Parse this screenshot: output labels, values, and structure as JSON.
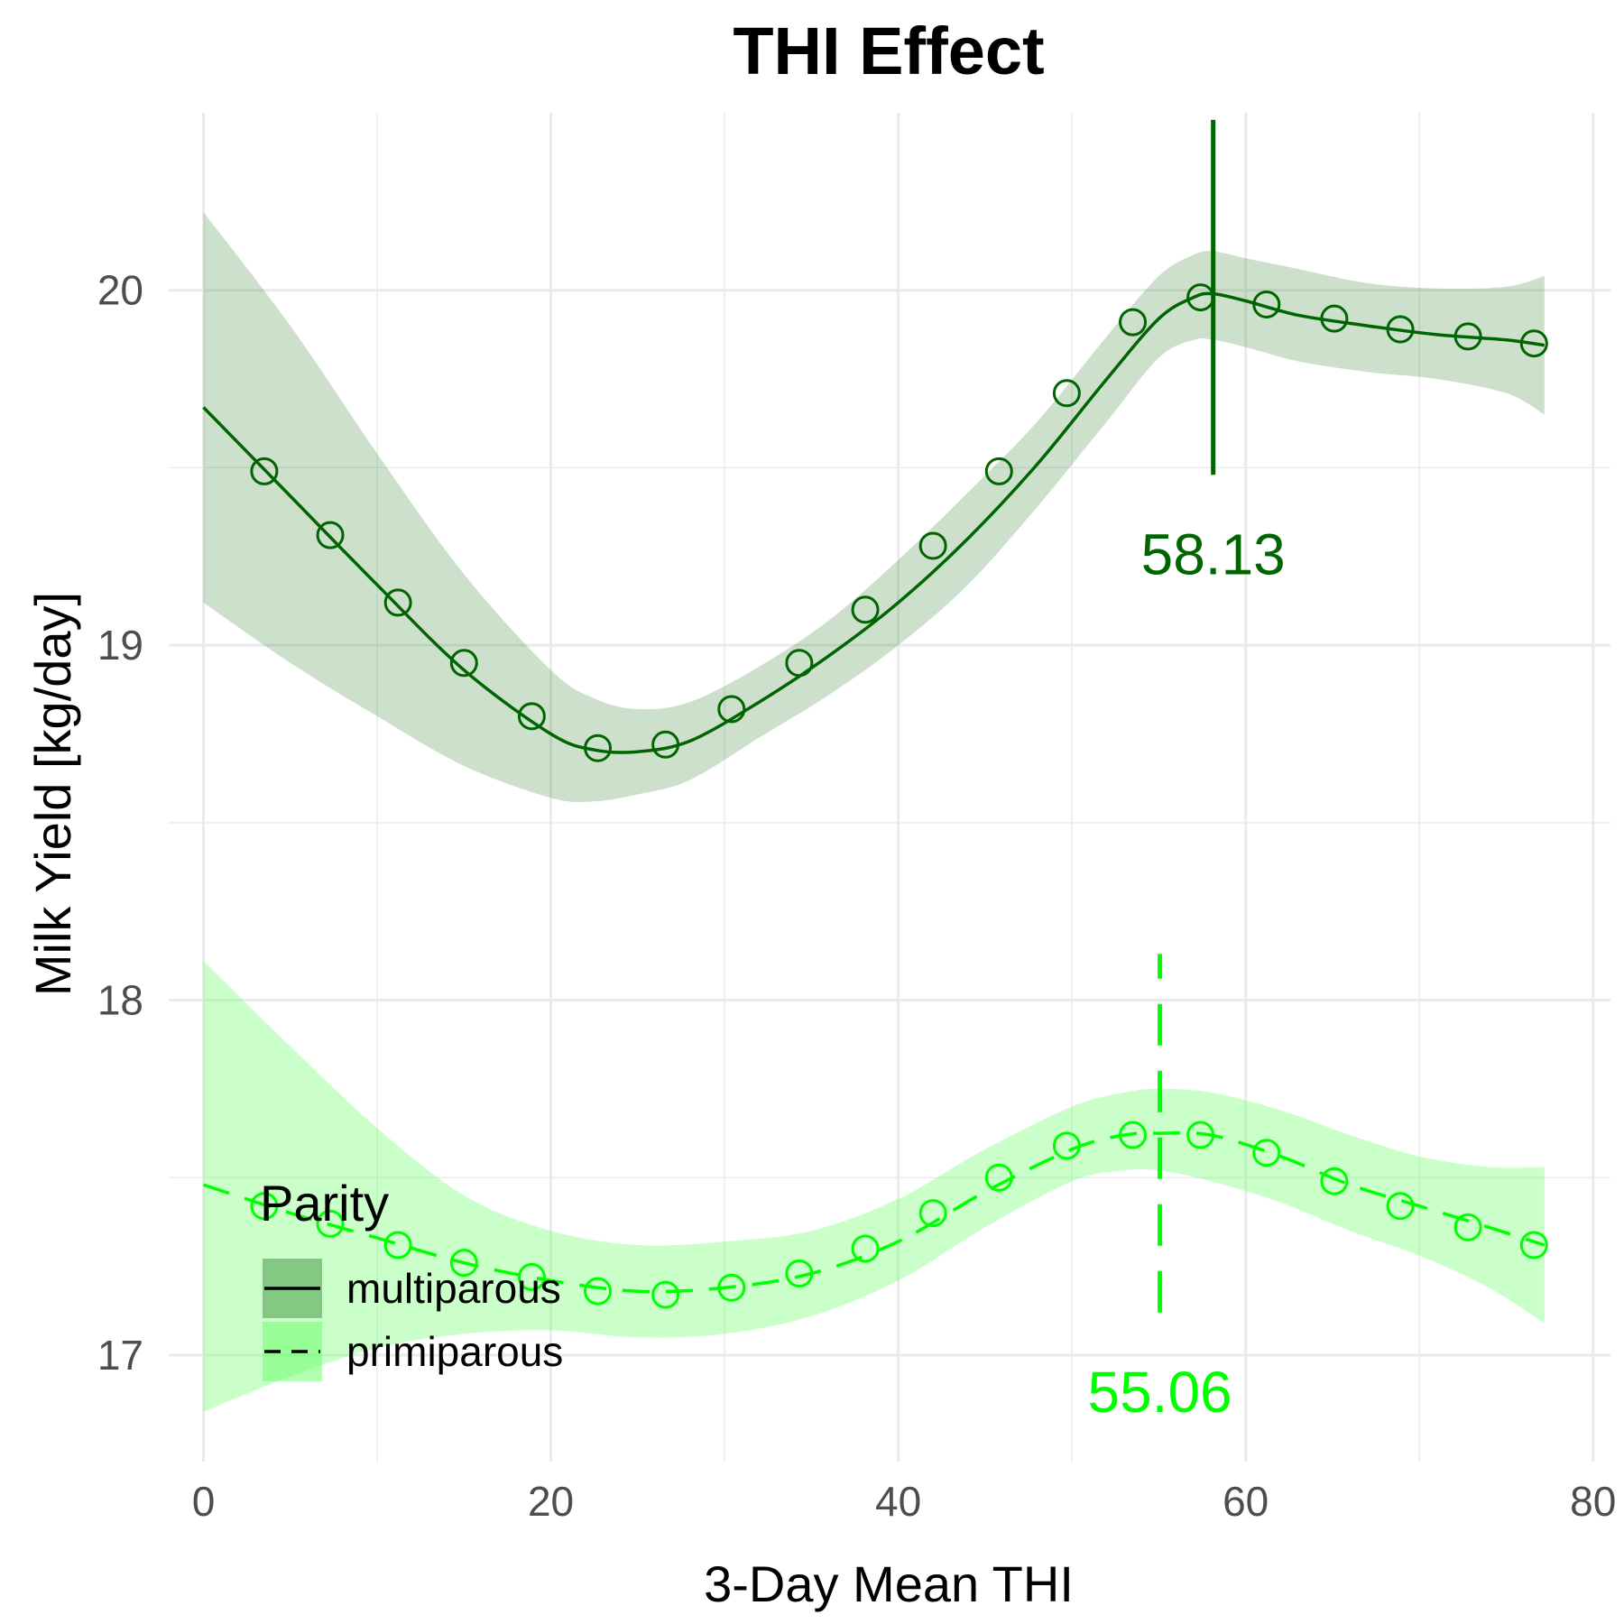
{
  "chart_data": {
    "type": "line",
    "title": "THI Effect",
    "xlabel": "3-Day Mean THI",
    "ylabel": "Milk Yield [kg/day]",
    "xlim": [
      -2,
      81
    ],
    "ylim": [
      16.7,
      20.5
    ],
    "x_ticks": [
      0,
      20,
      40,
      60,
      80
    ],
    "y_ticks": [
      17,
      18,
      19,
      20
    ],
    "grid": true,
    "legend": {
      "title": "Parity",
      "placement": "bottom-left"
    },
    "series": [
      {
        "name": "multiparous",
        "color": "#006400",
        "band_color": "#006400",
        "linestyle": "solid",
        "curve": {
          "x": [
            0,
            5,
            10,
            15,
            20,
            22.5,
            25,
            28,
            32,
            36,
            40,
            44,
            48,
            52,
            55,
            57,
            58.13,
            60,
            63,
            67,
            71,
            75,
            77.2
          ],
          "y": [
            19.67,
            19.42,
            19.17,
            18.93,
            18.75,
            18.705,
            18.7,
            18.73,
            18.84,
            18.97,
            19.12,
            19.3,
            19.51,
            19.75,
            19.92,
            19.98,
            19.99,
            19.97,
            19.93,
            19.9,
            19.875,
            19.86,
            19.845
          ],
          "lower": [
            19.12,
            18.95,
            18.8,
            18.66,
            18.57,
            18.56,
            18.58,
            18.62,
            18.74,
            18.86,
            19.0,
            19.17,
            19.39,
            19.63,
            19.81,
            19.86,
            19.86,
            19.84,
            19.8,
            19.77,
            19.75,
            19.71,
            19.65
          ],
          "upper": [
            20.22,
            19.9,
            19.54,
            19.2,
            18.93,
            18.85,
            18.82,
            18.84,
            18.94,
            19.07,
            19.24,
            19.43,
            19.63,
            19.87,
            20.04,
            20.1,
            20.11,
            20.09,
            20.06,
            20.02,
            20.005,
            20.01,
            20.04
          ]
        },
        "points": {
          "x": [
            3.5,
            7.3,
            11.2,
            15.0,
            18.9,
            22.7,
            26.6,
            30.4,
            34.3,
            38.1,
            42.0,
            45.8,
            49.7,
            53.5,
            57.4,
            61.2,
            65.1,
            68.9,
            72.8,
            76.6
          ],
          "y": [
            19.49,
            19.31,
            19.12,
            18.95,
            18.8,
            18.71,
            18.72,
            18.82,
            18.95,
            19.1,
            19.28,
            19.49,
            19.71,
            19.91,
            19.98,
            19.96,
            19.92,
            19.89,
            19.87,
            19.85
          ]
        },
        "vline": {
          "x": 58.13,
          "y0": 19.48,
          "y1": 20.48,
          "linestyle": "solid"
        },
        "annotation": {
          "text": "58.13",
          "x": 58.13,
          "y": 19.2
        }
      },
      {
        "name": "primiparous",
        "color": "#00ff00",
        "band_color": "#66ff66",
        "linestyle": "dashed",
        "curve": {
          "x": [
            0,
            5,
            10,
            15,
            20,
            25,
            30,
            35,
            40,
            45,
            50,
            53,
            55.06,
            58,
            62,
            66,
            70,
            74,
            77.2
          ],
          "y": [
            17.48,
            17.4,
            17.33,
            17.26,
            17.21,
            17.18,
            17.19,
            17.23,
            17.32,
            17.46,
            17.58,
            17.62,
            17.625,
            17.62,
            17.56,
            17.48,
            17.42,
            17.36,
            17.31
          ],
          "lower": [
            16.84,
            16.94,
            17.02,
            17.06,
            17.07,
            17.05,
            17.06,
            17.11,
            17.21,
            17.36,
            17.49,
            17.52,
            17.52,
            17.49,
            17.43,
            17.35,
            17.28,
            17.19,
            17.09
          ],
          "upper": [
            18.11,
            17.87,
            17.64,
            17.45,
            17.35,
            17.31,
            17.32,
            17.35,
            17.44,
            17.58,
            17.7,
            17.74,
            17.75,
            17.74,
            17.69,
            17.62,
            17.56,
            17.53,
            17.53
          ]
        },
        "points": {
          "x": [
            3.5,
            7.3,
            11.2,
            15.0,
            18.9,
            22.7,
            26.6,
            30.4,
            34.3,
            38.1,
            42.0,
            45.8,
            49.7,
            53.5,
            57.4,
            61.2,
            65.1,
            68.9,
            72.8,
            76.6
          ],
          "y": [
            17.42,
            17.37,
            17.31,
            17.26,
            17.22,
            17.18,
            17.17,
            17.19,
            17.23,
            17.3,
            17.4,
            17.5,
            17.59,
            17.62,
            17.62,
            17.57,
            17.49,
            17.42,
            17.36,
            17.31
          ]
        },
        "vline": {
          "x": 55.06,
          "y0": 17.12,
          "y1": 18.13,
          "linestyle": "dashed"
        },
        "annotation": {
          "text": "55.06",
          "x": 55.06,
          "y": 16.84
        }
      }
    ]
  }
}
